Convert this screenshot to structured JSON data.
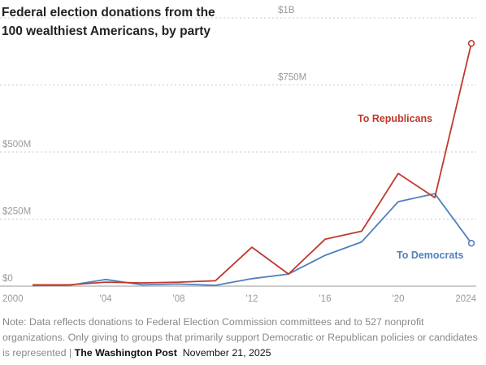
{
  "chart_data": {
    "type": "line",
    "title_lines": [
      "Federal election donations from the",
      "100 wealthiest Americans, by party"
    ],
    "x_ticks": [
      {
        "value": 2000,
        "label": "2000"
      },
      {
        "value": 2004,
        "label": "'04"
      },
      {
        "value": 2008,
        "label": "'08"
      },
      {
        "value": 2012,
        "label": "'12"
      },
      {
        "value": 2016,
        "label": "'16"
      },
      {
        "value": 2020,
        "label": "'20"
      },
      {
        "value": 2024,
        "label": "2024"
      }
    ],
    "y_ticks": [
      {
        "value": 0,
        "label": "$0"
      },
      {
        "value": 250,
        "label": "$250M"
      },
      {
        "value": 500,
        "label": "$500M"
      },
      {
        "value": 750,
        "label": "$750M"
      },
      {
        "value": 1000,
        "label": "$1B"
      }
    ],
    "xlim": [
      2000,
      2024
    ],
    "ylim": [
      0,
      1000
    ],
    "y_unit": "millions of dollars",
    "grid": true,
    "series": [
      {
        "name": "To Republicans",
        "color": "#c0392b",
        "x": [
          2000,
          2002,
          2004,
          2006,
          2008,
          2010,
          2012,
          2014,
          2016,
          2018,
          2020,
          2022,
          2024
        ],
        "y": [
          5,
          5,
          15,
          12,
          15,
          20,
          145,
          45,
          175,
          205,
          420,
          330,
          905
        ]
      },
      {
        "name": "To Democrats",
        "color": "#4f81bd",
        "x": [
          2000,
          2002,
          2004,
          2006,
          2008,
          2010,
          2012,
          2014,
          2016,
          2018,
          2020,
          2022,
          2024
        ],
        "y": [
          2,
          3,
          25,
          5,
          8,
          3,
          28,
          45,
          115,
          165,
          315,
          345,
          160
        ]
      }
    ]
  },
  "note": {
    "text": "Note: Data reflects donations to Federal Election Commission committees and to 527 nonprofit organizations. Only giving to groups that primarily support Democratic or Republican policies or candidates is represented | ",
    "brand": "The Washington Post",
    "date": "November 21, 2025"
  }
}
